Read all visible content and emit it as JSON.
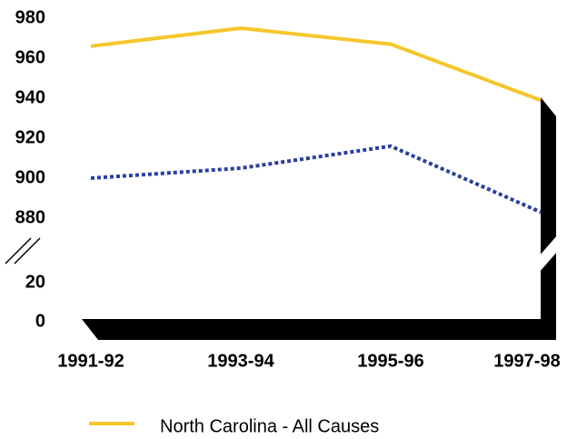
{
  "chart_data": {
    "type": "line",
    "categories": [
      "1991-92",
      "1993-94",
      "1995-96",
      "1997-98"
    ],
    "series": [
      {
        "name": "North Carolina - All Causes",
        "color": "#f5c72c",
        "values": [
          966,
          975,
          967,
          939
        ]
      },
      {
        "color": "#2b3f9e",
        "values": [
          900,
          905,
          916,
          883
        ],
        "dashed": true
      }
    ],
    "ylim": [
      0,
      980
    ],
    "axis_break": [
      20,
      880
    ],
    "yticks": [
      0,
      20,
      880,
      900,
      920,
      940,
      960,
      980
    ]
  }
}
